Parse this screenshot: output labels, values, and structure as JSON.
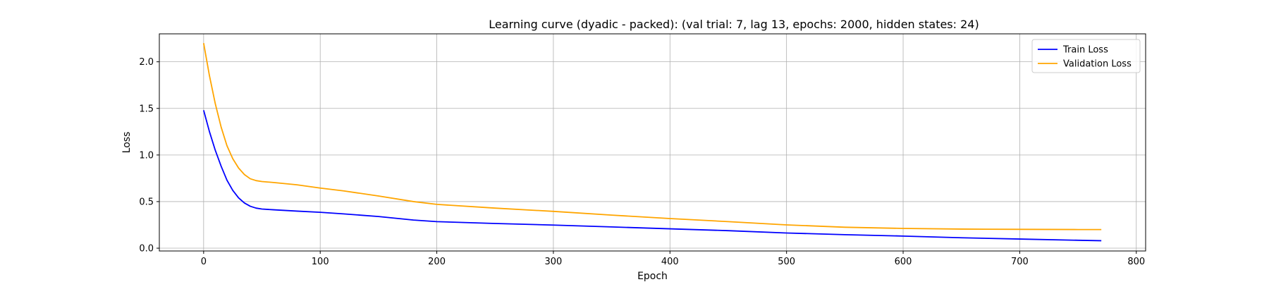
{
  "chart_data": {
    "type": "line",
    "title": "Learning curve (dyadic - packed): (val trial: 7, lag 13, epochs: 2000, hidden states: 24)",
    "xlabel": "Epoch",
    "ylabel": "Loss",
    "xlim": [
      -38,
      808
    ],
    "ylim": [
      -0.03,
      2.3
    ],
    "xticks": [
      0,
      100,
      200,
      300,
      400,
      500,
      600,
      700,
      800
    ],
    "xtick_labels": [
      "0",
      "100",
      "200",
      "300",
      "400",
      "500",
      "600",
      "700",
      "800"
    ],
    "yticks": [
      0.0,
      0.5,
      1.0,
      1.5,
      2.0
    ],
    "ytick_labels": [
      "0.0",
      "0.5",
      "1.0",
      "1.5",
      "2.0"
    ],
    "grid": true,
    "legend_position": "top-right",
    "series": [
      {
        "name": "Train Loss",
        "color": "#0000ff",
        "points": [
          [
            0,
            1.48
          ],
          [
            5,
            1.25
          ],
          [
            10,
            1.05
          ],
          [
            15,
            0.88
          ],
          [
            20,
            0.73
          ],
          [
            25,
            0.62
          ],
          [
            30,
            0.54
          ],
          [
            35,
            0.485
          ],
          [
            40,
            0.45
          ],
          [
            45,
            0.43
          ],
          [
            50,
            0.42
          ],
          [
            60,
            0.412
          ],
          [
            80,
            0.398
          ],
          [
            100,
            0.385
          ],
          [
            120,
            0.368
          ],
          [
            150,
            0.34
          ],
          [
            180,
            0.302
          ],
          [
            200,
            0.285
          ],
          [
            250,
            0.265
          ],
          [
            300,
            0.248
          ],
          [
            350,
            0.228
          ],
          [
            400,
            0.208
          ],
          [
            450,
            0.188
          ],
          [
            500,
            0.163
          ],
          [
            550,
            0.145
          ],
          [
            600,
            0.13
          ],
          [
            650,
            0.112
          ],
          [
            700,
            0.098
          ],
          [
            750,
            0.085
          ],
          [
            770,
            0.08
          ]
        ]
      },
      {
        "name": "Validation Loss",
        "color": "#ffa500",
        "points": [
          [
            0,
            2.2
          ],
          [
            5,
            1.85
          ],
          [
            10,
            1.55
          ],
          [
            15,
            1.3
          ],
          [
            20,
            1.1
          ],
          [
            25,
            0.96
          ],
          [
            30,
            0.86
          ],
          [
            35,
            0.79
          ],
          [
            40,
            0.745
          ],
          [
            45,
            0.725
          ],
          [
            50,
            0.715
          ],
          [
            60,
            0.705
          ],
          [
            80,
            0.68
          ],
          [
            100,
            0.645
          ],
          [
            120,
            0.615
          ],
          [
            150,
            0.56
          ],
          [
            180,
            0.5
          ],
          [
            200,
            0.47
          ],
          [
            250,
            0.43
          ],
          [
            300,
            0.395
          ],
          [
            350,
            0.355
          ],
          [
            400,
            0.318
          ],
          [
            450,
            0.285
          ],
          [
            500,
            0.25
          ],
          [
            550,
            0.225
          ],
          [
            600,
            0.212
          ],
          [
            650,
            0.205
          ],
          [
            700,
            0.202
          ],
          [
            750,
            0.2
          ],
          [
            770,
            0.2
          ]
        ]
      }
    ]
  }
}
